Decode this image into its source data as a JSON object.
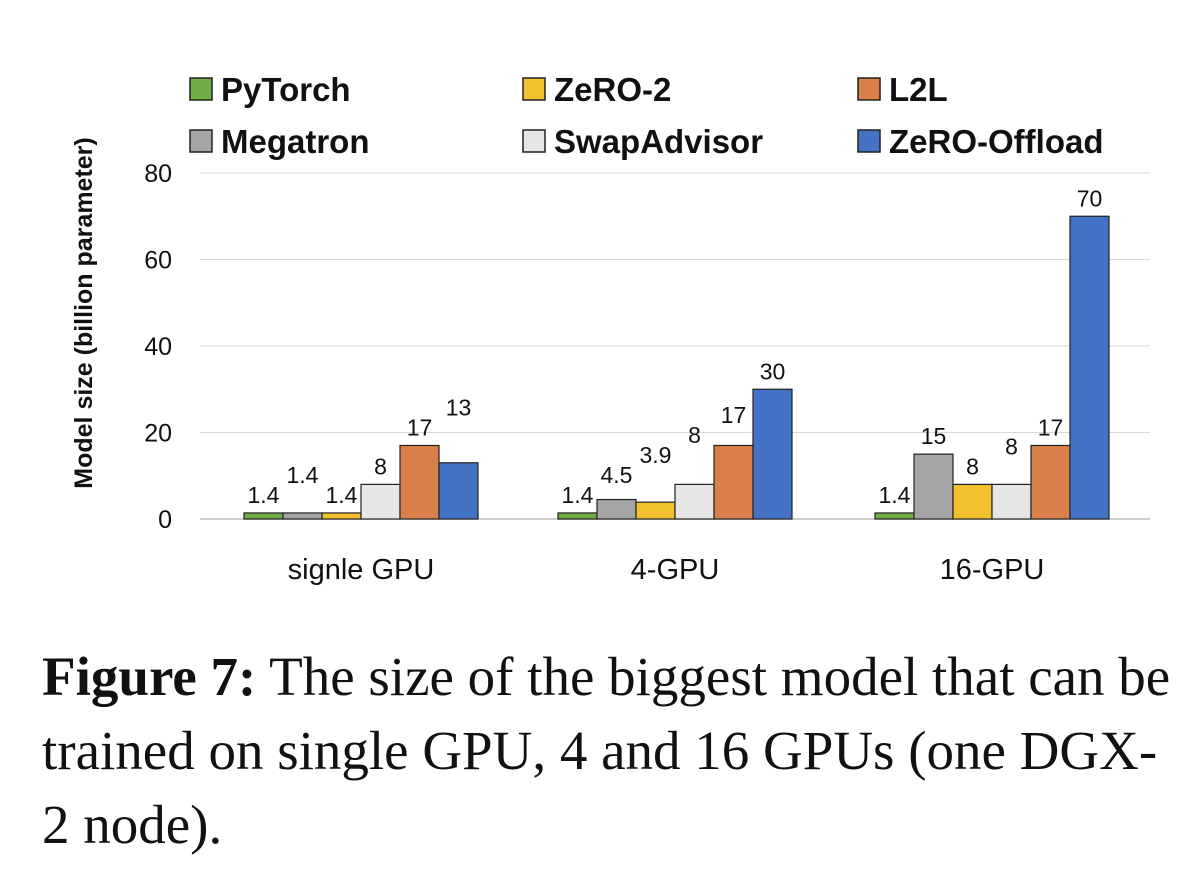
{
  "chart_data": {
    "type": "bar",
    "title": "",
    "xlabel": "",
    "ylabel": "Model size (billion parameter)",
    "ylim": [
      0,
      80
    ],
    "yticks": [
      0,
      20,
      40,
      60,
      80
    ],
    "grid": true,
    "legend_position": "top",
    "categories": [
      "signle GPU",
      "4-GPU",
      "16-GPU"
    ],
    "series": [
      {
        "name": "PyTorch",
        "color": "#70AD47",
        "values": [
          1.4,
          1.4,
          1.4
        ],
        "labels": [
          "1.4",
          "1.4",
          "1.4"
        ]
      },
      {
        "name": "Megatron",
        "color": "#A5A5A5",
        "values": [
          1.4,
          4.5,
          15
        ],
        "labels": [
          "1.4",
          "4.5",
          "15"
        ]
      },
      {
        "name": "ZeRO-2",
        "color": "#F2C12E",
        "values": [
          1.4,
          3.9,
          8
        ],
        "labels": [
          "1.4",
          "3.9",
          "8"
        ]
      },
      {
        "name": "SwapAdvisor",
        "color": "#E7E6E6",
        "values": [
          8,
          8,
          8
        ],
        "labels": [
          "8",
          "8",
          "8"
        ]
      },
      {
        "name": "L2L",
        "color": "#D9804A",
        "values": [
          17,
          17,
          17
        ],
        "labels": [
          "17",
          "17",
          "17"
        ]
      },
      {
        "name": "ZeRO-Offload",
        "color": "#4472C4",
        "values": [
          13,
          30,
          70
        ],
        "labels": [
          "13",
          "30",
          "70"
        ]
      }
    ]
  },
  "caption": {
    "label": "Figure 7:",
    "text": " The size of the biggest model that can be trained on single GPU, 4 and 16 GPUs (one DGX-2 node)."
  }
}
